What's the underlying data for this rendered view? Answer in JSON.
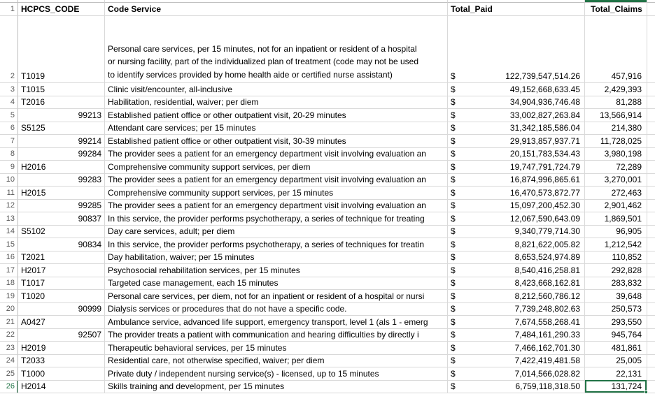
{
  "sheet": {
    "accent_color": "#217346",
    "gridline_color": "#d9d9d9",
    "row_number_color": "#595959",
    "currency_symbol": "$",
    "header_row_number": "1",
    "header": {
      "hcpcs": "HCPCS_CODE",
      "service": "Code Service",
      "paid": "Total_Paid",
      "claims": "Total_Claims"
    },
    "selection": {
      "row_number": 26,
      "field": "claims",
      "color": "#217346"
    },
    "rows": [
      {
        "n": 2,
        "code": "T1019",
        "code_align": "left",
        "service_lines": [
          "Personal care services, per 15 minutes, not for an inpatient or resident of a hospital",
          "or nursing facility, part of the individualized plan of treatment (code may not be used",
          "to identify services provided by home health aide or certified nurse assistant)"
        ],
        "paid": "122,739,547,514.26",
        "claims": "457,916"
      },
      {
        "n": 3,
        "code": "T1015",
        "code_align": "left",
        "service": "Clinic visit/encounter, all-inclusive",
        "paid": "49,152,668,633.45",
        "claims": "2,429,393"
      },
      {
        "n": 4,
        "code": "T2016",
        "code_align": "left",
        "service": "Habilitation, residential, waiver; per diem",
        "paid": "34,904,936,746.48",
        "claims": "81,288"
      },
      {
        "n": 5,
        "code": "99213",
        "code_align": "right",
        "service": "Established patient office or other outpatient visit, 20-29 minutes",
        "paid": "33,002,827,263.84",
        "claims": "13,566,914"
      },
      {
        "n": 6,
        "code": "S5125",
        "code_align": "left",
        "service": "Attendant care services; per 15 minutes",
        "paid": "31,342,185,586.04",
        "claims": "214,380"
      },
      {
        "n": 7,
        "code": "99214",
        "code_align": "right",
        "service": "Established patient office or other outpatient visit, 30-39 minutes",
        "paid": "29,913,857,937.71",
        "claims": "11,728,025"
      },
      {
        "n": 8,
        "code": "99284",
        "code_align": "right",
        "service": "The provider sees a patient for an emergency department visit involving evaluation an",
        "paid": "20,151,783,534.43",
        "claims": "3,980,198"
      },
      {
        "n": 9,
        "code": "H2016",
        "code_align": "left",
        "service": "Comprehensive community support services, per diem",
        "paid": "19,747,791,724.79",
        "claims": "72,289"
      },
      {
        "n": 10,
        "code": "99283",
        "code_align": "right",
        "service": "The provider sees a patient for an emergency department visit involving evaluation an",
        "paid": "16,874,996,865.61",
        "claims": "3,270,001"
      },
      {
        "n": 11,
        "code": "H2015",
        "code_align": "left",
        "service": "Comprehensive community support services, per 15 minutes",
        "paid": "16,470,573,872.77",
        "claims": "272,463"
      },
      {
        "n": 12,
        "code": "99285",
        "code_align": "right",
        "service": "The provider sees a patient for an emergency department visit involving evaluation an",
        "paid": "15,097,200,452.30",
        "claims": "2,901,462"
      },
      {
        "n": 13,
        "code": "90837",
        "code_align": "right",
        "service": "In this service, the provider performs psychotherapy, a series of technique for treating",
        "paid": "12,067,590,643.09",
        "claims": "1,869,501"
      },
      {
        "n": 14,
        "code": "S5102",
        "code_align": "left",
        "service": "Day care services, adult; per diem",
        "paid": "9,340,779,714.30",
        "claims": "96,905"
      },
      {
        "n": 15,
        "code": "90834",
        "code_align": "right",
        "service": "In this service, the provider performs psychotherapy, a series of techniques for treatin",
        "paid": "8,821,622,005.82",
        "claims": "1,212,542"
      },
      {
        "n": 16,
        "code": "T2021",
        "code_align": "left",
        "service": "Day habilitation, waiver; per 15 minutes",
        "paid": "8,653,524,974.89",
        "claims": "110,852"
      },
      {
        "n": 17,
        "code": "H2017",
        "code_align": "left",
        "service": "Psychosocial rehabilitation services, per 15 minutes",
        "paid": "8,540,416,258.81",
        "claims": "292,828"
      },
      {
        "n": 18,
        "code": "T1017",
        "code_align": "left",
        "service": "Targeted case management, each 15 minutes",
        "paid": "8,423,668,162.81",
        "claims": "283,832"
      },
      {
        "n": 19,
        "code": "T1020",
        "code_align": "left",
        "service": "Personal care services, per diem, not for an inpatient or resident of a hospital or nursi",
        "paid": "8,212,560,786.12",
        "claims": "39,648"
      },
      {
        "n": 20,
        "code": "90999",
        "code_align": "right",
        "service": "Dialysis services or procedures that do not have a specific code.",
        "paid": "7,739,248,802.63",
        "claims": "250,573"
      },
      {
        "n": 21,
        "code": "A0427",
        "code_align": "left",
        "service": "Ambulance service, advanced life support, emergency transport, level 1 (als 1 - emerg",
        "paid": "7,674,558,268.41",
        "claims": "293,550"
      },
      {
        "n": 22,
        "code": "92507",
        "code_align": "right",
        "service": "The provider treats a patient with communication and hearing difficulties by directly i",
        "paid": "7,484,161,290.33",
        "claims": "945,764"
      },
      {
        "n": 23,
        "code": "H2019",
        "code_align": "left",
        "service": "Therapeutic behavioral services, per 15 minutes",
        "paid": "7,466,162,701.30",
        "claims": "481,861"
      },
      {
        "n": 24,
        "code": "T2033",
        "code_align": "left",
        "service": "Residential care, not otherwise specified, waiver; per diem",
        "paid": "7,422,419,481.58",
        "claims": "25,005"
      },
      {
        "n": 25,
        "code": "T1000",
        "code_align": "left",
        "service": "Private duty / independent nursing service(s) - licensed, up to 15 minutes",
        "paid": "7,014,566,028.82",
        "claims": "22,131"
      },
      {
        "n": 26,
        "code": "H2014",
        "code_align": "left",
        "service": "Skills training and development, per 15 minutes",
        "paid": "6,759,118,318.50",
        "claims": "131,724"
      }
    ]
  }
}
